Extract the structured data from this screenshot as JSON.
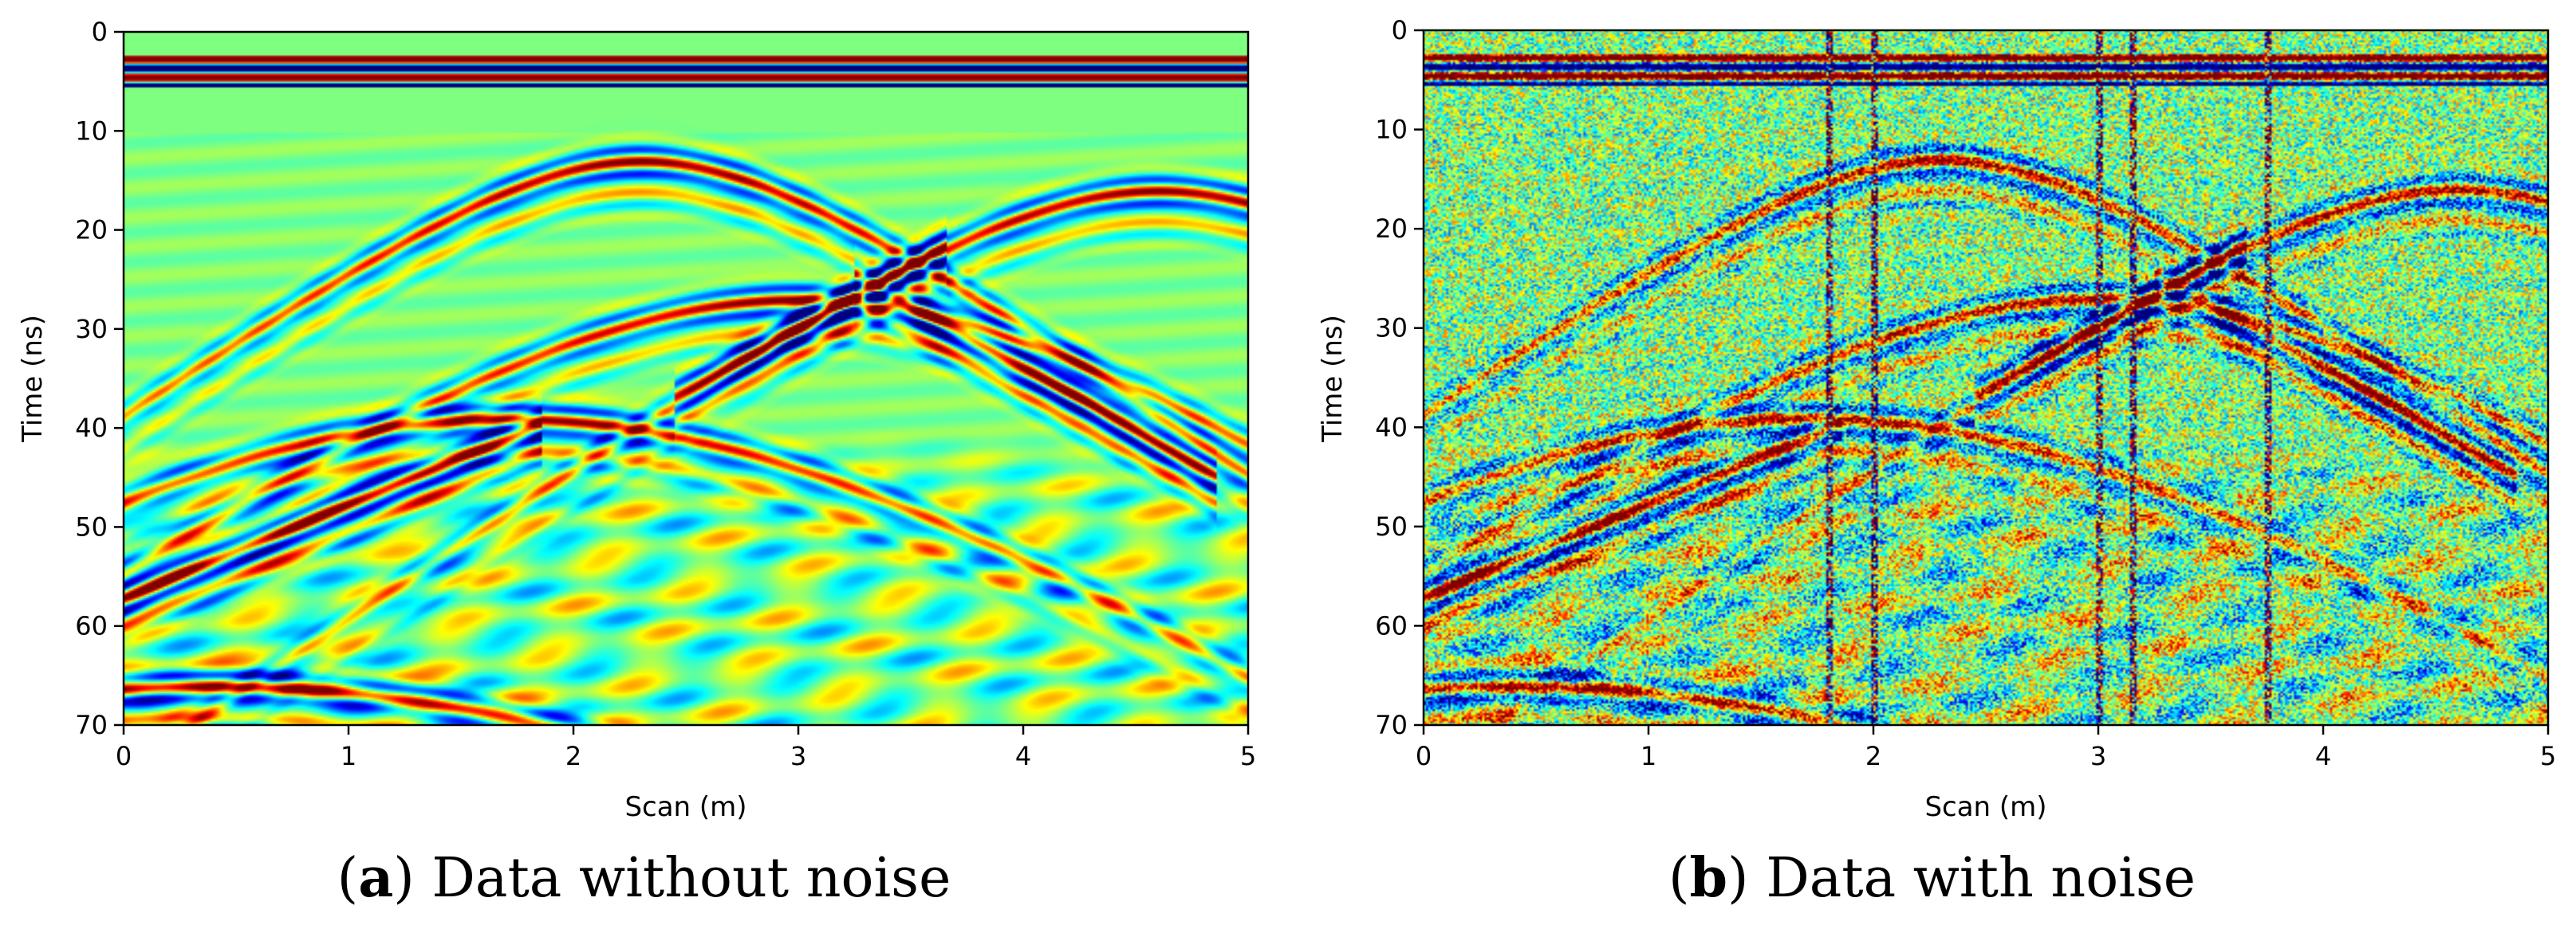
{
  "colormap": [
    "#00007f",
    "#0000ff",
    "#007fff",
    "#00ffff",
    "#7fff7f",
    "#ffff00",
    "#ff7f00",
    "#ff0000",
    "#7f0000"
  ],
  "panels": [
    {
      "id": "a",
      "caption_letter": "a",
      "caption_text": "Data without noise",
      "noise": false
    },
    {
      "id": "b",
      "caption_letter": "b",
      "caption_text": "Data with noise",
      "noise": true
    }
  ],
  "chart_data": [
    {
      "type": "heatmap",
      "title": "",
      "xlabel": "Scan (m)",
      "ylabel": "Time (ns)",
      "xlim": [
        0,
        5
      ],
      "ylim": [
        70,
        0
      ],
      "xticks": [
        "0",
        "1",
        "2",
        "3",
        "4",
        "5"
      ],
      "yticks": [
        "0",
        "10",
        "20",
        "30",
        "40",
        "50",
        "60",
        "70"
      ],
      "direct_wave_ns": [
        3,
        5
      ],
      "hyperbolas": [
        {
          "apex_x": 2.3,
          "apex_t": 13,
          "amp": 1.0
        },
        {
          "apex_x": 4.6,
          "apex_t": 16,
          "amp": 1.0
        },
        {
          "apex_x": 1.7,
          "apex_t": 39,
          "amp": 1.0
        },
        {
          "apex_x": 3.0,
          "apex_t": 27,
          "amp": 1.0
        },
        {
          "apex_x": 0.4,
          "apex_t": 66,
          "amp": 1.0
        }
      ],
      "dipping_events": [
        {
          "from": [
            0,
            57
          ],
          "to": [
            1.8,
            40
          ]
        },
        {
          "from": [
            3.3,
            25
          ],
          "to": [
            4.8,
            44
          ]
        },
        {
          "from": [
            2.5,
            36
          ],
          "to": [
            3.6,
            22
          ]
        }
      ]
    },
    {
      "type": "heatmap",
      "title": "",
      "xlabel": "Scan (m)",
      "ylabel": "Time (ns)",
      "xlim": [
        0,
        5
      ],
      "ylim": [
        70,
        0
      ],
      "xticks": [
        "0",
        "1",
        "2",
        "3",
        "4",
        "5"
      ],
      "yticks": [
        "0",
        "10",
        "20",
        "30",
        "40",
        "50",
        "60",
        "70"
      ],
      "direct_wave_ns": [
        3,
        5
      ],
      "noisy_traces_m": [
        1.8,
        2.0,
        3.0,
        3.15,
        3.75
      ],
      "hyperbolas": [
        {
          "apex_x": 2.3,
          "apex_t": 13,
          "amp": 1.0
        },
        {
          "apex_x": 4.6,
          "apex_t": 16,
          "amp": 1.0
        },
        {
          "apex_x": 1.7,
          "apex_t": 39,
          "amp": 1.0
        },
        {
          "apex_x": 3.0,
          "apex_t": 27,
          "amp": 1.0
        },
        {
          "apex_x": 0.4,
          "apex_t": 66,
          "amp": 1.0
        }
      ],
      "dipping_events": [
        {
          "from": [
            0,
            57
          ],
          "to": [
            1.8,
            40
          ]
        },
        {
          "from": [
            3.3,
            25
          ],
          "to": [
            4.8,
            44
          ]
        },
        {
          "from": [
            2.5,
            36
          ],
          "to": [
            3.6,
            22
          ]
        }
      ]
    }
  ]
}
